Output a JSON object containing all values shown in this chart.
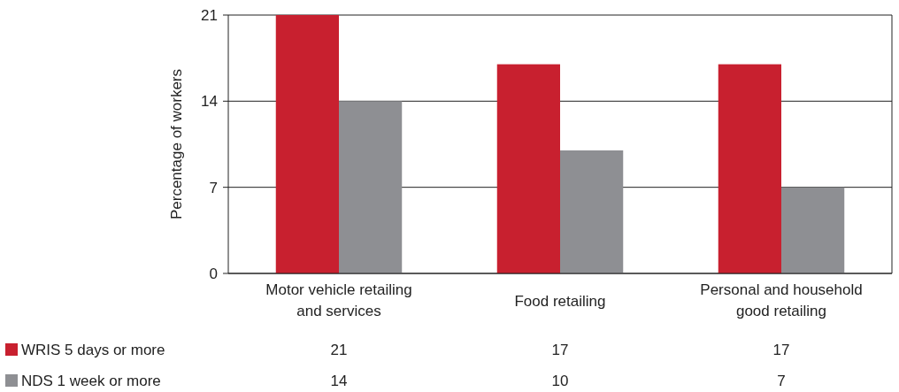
{
  "chart_data": {
    "type": "bar",
    "ylabel": "Percentage of workers",
    "categories": [
      "Motor vehicle retailing and services",
      "Food retailing",
      "Personal and household good retailing"
    ],
    "series": [
      {
        "name": "WRIS 5 days or more",
        "color": "#c8202f",
        "values": [
          21,
          17,
          17
        ]
      },
      {
        "name": "NDS 1 week or more",
        "color": "#8e8f93",
        "values": [
          14,
          10,
          7
        ]
      }
    ],
    "ylim": [
      0,
      21
    ],
    "yticks": [
      0,
      7,
      14,
      21
    ],
    "grid": "y",
    "legend": "bottom",
    "data_labels": true
  }
}
